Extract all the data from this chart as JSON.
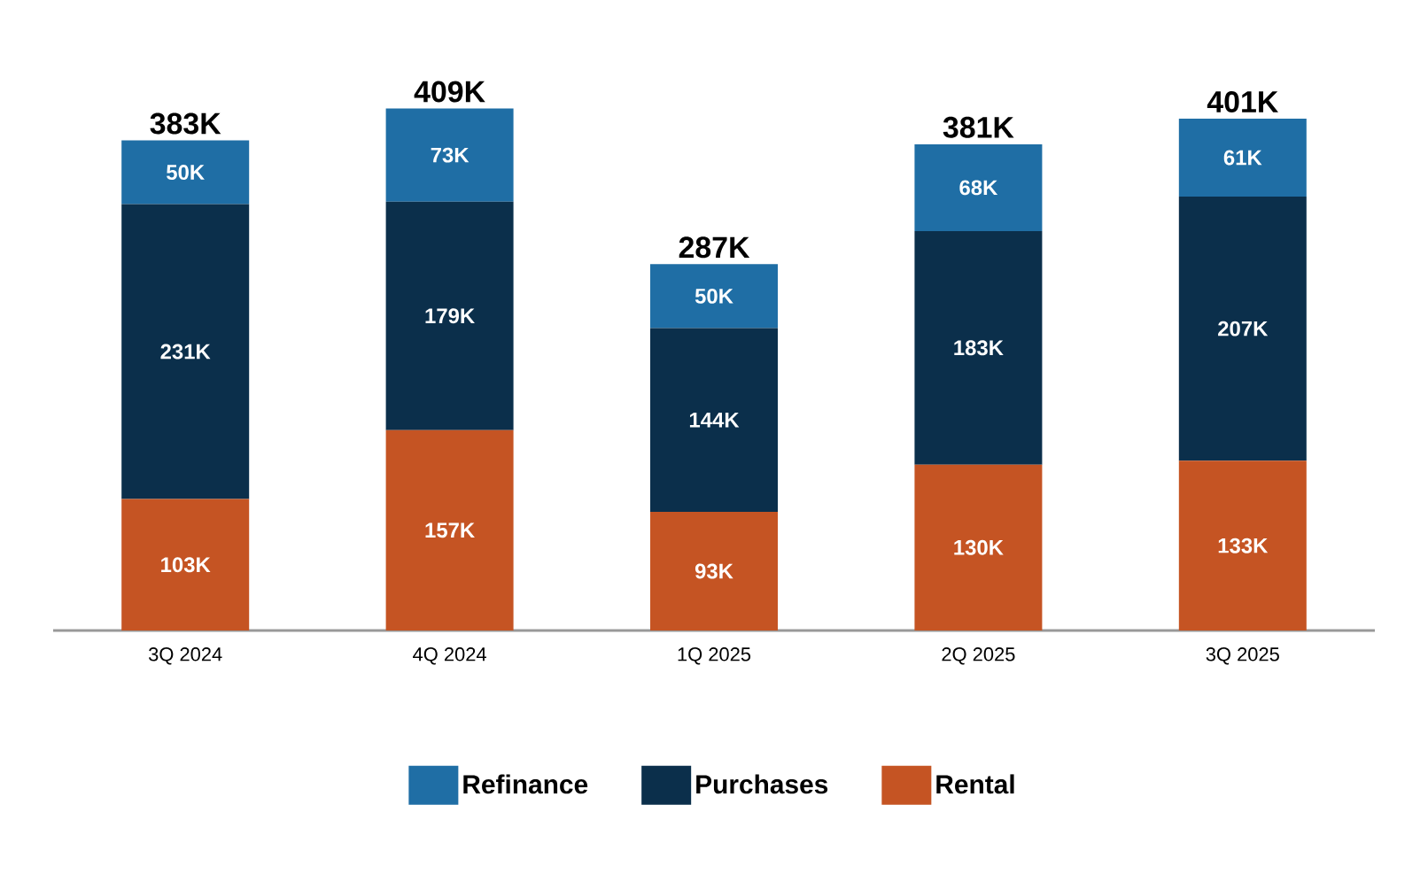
{
  "chart_data": {
    "type": "bar",
    "stacked": true,
    "legend": "bottom",
    "categories": [
      "3Q 2024",
      "4Q 2024",
      "1Q 2025",
      "2Q 2025",
      "3Q 2025"
    ],
    "series": [
      {
        "name": "Rental",
        "color": "#c55423",
        "values": [
          103,
          157,
          93,
          130,
          133
        ],
        "value_labels": [
          "103K",
          "157K",
          "93K",
          "130K",
          "133K"
        ]
      },
      {
        "name": "Purchases",
        "color": "#0b2f4b",
        "values": [
          231,
          179,
          144,
          183,
          207
        ],
        "value_labels": [
          "231K",
          "179K",
          "144K",
          "183K",
          "207K"
        ]
      },
      {
        "name": "Refinance",
        "color": "#1f6ea5",
        "values": [
          50,
          73,
          50,
          68,
          61
        ],
        "value_labels": [
          "50K",
          "73K",
          "50K",
          "68K",
          "61K"
        ]
      }
    ],
    "totals": [
      "383K",
      "409K",
      "287K",
      "381K",
      "401K"
    ]
  }
}
